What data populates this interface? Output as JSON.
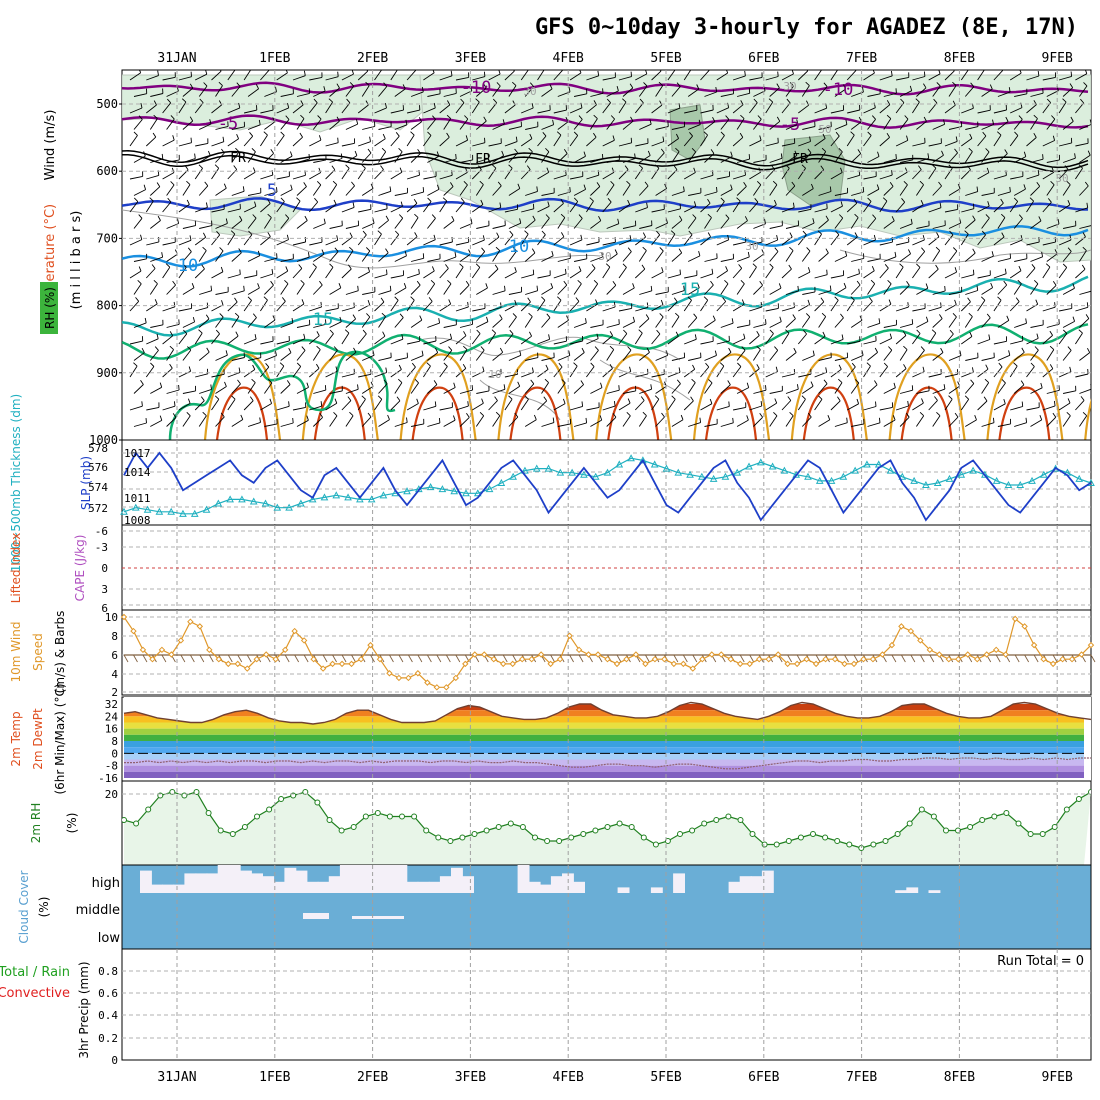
{
  "title": "GFS 0~10day 3-hourly for AGADEZ (8E, 17N)",
  "x_axis": {
    "date_labels": [
      "31JAN",
      "1FEB",
      "2FEB",
      "3FEB",
      "4FEB",
      "5FEB",
      "6FEB",
      "7FEB",
      "8FEB",
      "9FEB"
    ],
    "days_shown": 10
  },
  "colors": {
    "temperature_contour": "#800080",
    "freezing": "#000000",
    "contour_blue": "#1e3fc8",
    "contour_lightblue": "#1a8fe0",
    "contour_cyan": "#1ab0b0",
    "contour_green": "#10b070",
    "contour_orange": "#e0a020",
    "contour_red": "#d04010",
    "rh_fill": "#dbeedd",
    "rh_fill_dark": "#a8c8aa",
    "slp": "#1e3fc8",
    "thickness": "#20b0c0",
    "wind10m": "#e0982a",
    "barb": "#806040",
    "rh2m": "#208020",
    "rh2m_fill": "#e8f5e8",
    "cloud": "#6aaed6",
    "cloud_clear": "#f4f0f8"
  },
  "panels": {
    "upper": {
      "y_label_wind": "Wind (m/s)",
      "y_label_temp": "Temperature (°C)",
      "y_label_mb": "(m i l l i b a r s)",
      "rh_tag": "RH (%)",
      "ticks": [
        "500",
        "600",
        "700",
        "800",
        "900",
        "1000"
      ],
      "contour_labels": [
        "-10",
        "-10",
        "-5",
        "-5",
        "FR",
        "FR",
        "FR",
        "5",
        "10",
        "10",
        "15",
        "15",
        "30",
        "30",
        "30",
        "50",
        "30",
        "30",
        "10"
      ]
    },
    "slp": {
      "label_thick": "1000~500mb Thickness (dm)",
      "label_slp": "SLP (mb)",
      "ticks_left": [
        "578",
        "576",
        "574",
        "572"
      ],
      "ticks_right": [
        "1017",
        "1014",
        "1011",
        "1008"
      ]
    },
    "cape": {
      "label_li": "Lifted Index",
      "label_cape": "CAPE (J/kg)",
      "ticks": [
        "-6",
        "-3",
        "0",
        "3",
        "6"
      ]
    },
    "wind10": {
      "label_a": "10m Wind",
      "label_b": "Speed",
      "label_c": "(m/s) & Barbs",
      "ticks": [
        "10",
        "8",
        "6",
        "4",
        "2"
      ]
    },
    "temp2m": {
      "label_a": "2m Temp",
      "label_b": "2m DewPt",
      "label_c": "(6hr Min/Max) (°C)",
      "ticks": [
        "32",
        "24",
        "16",
        "8",
        "0",
        "-8",
        "-16"
      ]
    },
    "rh2m": {
      "label_a": "2m RH",
      "label_b": "(%)",
      "ticks": [
        "20"
      ]
    },
    "cloud": {
      "label_a": "Cloud Cover",
      "label_b": "(%)",
      "levels": [
        "high",
        "middle",
        "low"
      ]
    },
    "precip": {
      "label_a": "Total / Rain",
      "label_b": "Convective",
      "label_c": "3hr Precip (mm)",
      "ticks": [
        "0.8",
        "0.6",
        "0.4",
        "0.2",
        "0"
      ],
      "run_total": "Run Total = 0"
    }
  },
  "chart_data": [
    {
      "type": "line",
      "name": "slp_thickness",
      "series": [
        {
          "name": "SLP (mb)",
          "values": [
            1014,
            1017,
            1015,
            1017,
            1015,
            1012,
            1013,
            1014,
            1015,
            1016,
            1014,
            1013,
            1015,
            1016,
            1014,
            1012,
            1011,
            1014,
            1015,
            1013,
            1011,
            1013,
            1015,
            1012,
            1010,
            1012,
            1014,
            1016,
            1013,
            1010,
            1011,
            1013,
            1015,
            1016,
            1014,
            1012,
            1009,
            1011,
            1013,
            1015,
            1013,
            1011,
            1012,
            1014,
            1016,
            1013,
            1010,
            1009,
            1011,
            1013,
            1015,
            1016,
            1013,
            1011,
            1008,
            1010,
            1012,
            1014,
            1016,
            1015,
            1012,
            1009,
            1011,
            1013,
            1015,
            1016,
            1013,
            1011,
            1008,
            1010,
            1012,
            1015,
            1016,
            1014,
            1012,
            1010,
            1009,
            1011,
            1013,
            1015,
            1014,
            1012,
            1013
          ]
        },
        {
          "name": "1000~500mb Thickness (dm)",
          "values": [
            571.8,
            572.2,
            572,
            571.8,
            571.8,
            571.6,
            571.6,
            572,
            572.6,
            573,
            573,
            572.8,
            572.6,
            572.2,
            572.2,
            572.6,
            573,
            573.2,
            573.4,
            573.2,
            573,
            573,
            573.4,
            573.6,
            573.8,
            574,
            574.2,
            574,
            573.8,
            573.6,
            573.6,
            574,
            574.6,
            575.2,
            575.8,
            576,
            576,
            575.6,
            575.6,
            575.4,
            575.2,
            575.6,
            576.4,
            577,
            576.8,
            576.4,
            576,
            575.6,
            575.4,
            575.2,
            575,
            575.2,
            575.6,
            576.2,
            576.6,
            576.2,
            575.8,
            575.4,
            575.2,
            574.8,
            574.8,
            575.2,
            575.8,
            576.4,
            576.4,
            575.8,
            575.2,
            574.8,
            574.4,
            574.6,
            575,
            575.4,
            575.8,
            575.4,
            574.8,
            574.4,
            574.4,
            574.8,
            575.4,
            576,
            575.6,
            575,
            574.6
          ]
        }
      ]
    },
    {
      "type": "line",
      "name": "wind10m_speed",
      "ylabel": "(m/s)",
      "ylim": [
        2,
        10
      ],
      "values": [
        10,
        8.5,
        6.5,
        5.5,
        6.5,
        6,
        7.5,
        9.5,
        9,
        6.5,
        5.5,
        5,
        5,
        4.5,
        5.5,
        6,
        5.5,
        6.5,
        8.5,
        7.5,
        5.5,
        4.5,
        5,
        5,
        5,
        5.5,
        7,
        5.5,
        4,
        3.5,
        3.5,
        4,
        3,
        2.5,
        2.5,
        3.5,
        5,
        6,
        6,
        5.5,
        5,
        5,
        5.5,
        5.5,
        6,
        5,
        5.5,
        8,
        6.5,
        6,
        6,
        5.5,
        5,
        5.5,
        6,
        5,
        5.5,
        5.5,
        5,
        5,
        4.5,
        5.5,
        6,
        6,
        5.5,
        5,
        5,
        5.5,
        5.5,
        6,
        5,
        5,
        5.5,
        5,
        5.5,
        5.5,
        5,
        5,
        5.5,
        5.5,
        6,
        7,
        9,
        8.5,
        7.5,
        6.5,
        6,
        5.5,
        5.5,
        6,
        5.5,
        6,
        6.5,
        6,
        9.8,
        9,
        7,
        5.5,
        5,
        5.5,
        5.5,
        6,
        7
      ]
    },
    {
      "type": "area",
      "name": "temp2m",
      "ylabel": "(°C)",
      "ylim": [
        -16,
        32
      ],
      "series": [
        {
          "name": "2m Temp",
          "values": [
            26,
            27,
            25,
            23,
            22,
            21,
            20,
            20,
            22,
            25,
            27,
            28,
            26,
            23,
            21,
            20,
            20,
            19,
            20,
            22,
            26,
            28,
            28,
            25,
            22,
            20,
            20,
            20,
            21,
            25,
            29,
            31,
            30,
            27,
            24,
            23,
            22,
            22,
            23,
            26,
            30,
            32,
            32,
            28,
            25,
            24,
            23,
            23,
            24,
            27,
            31,
            33,
            32,
            29,
            26,
            24,
            23,
            22,
            24,
            27,
            31,
            33,
            32,
            29,
            26,
            24,
            23,
            23,
            24,
            27,
            31,
            32,
            32,
            29,
            26,
            24,
            23,
            23,
            24,
            28,
            32,
            33,
            32,
            29,
            26,
            24,
            23,
            22
          ]
        },
        {
          "name": "2m DewPt",
          "values": [
            -6,
            -6,
            -5,
            -6,
            -5,
            -6,
            -5,
            -6,
            -5,
            -6,
            -5,
            -5,
            -6,
            -5,
            -5,
            -6,
            -5,
            -6,
            -5,
            -5,
            -6,
            -5,
            -6,
            -5,
            -5,
            -5,
            -6,
            -5,
            -5,
            -6,
            -5,
            -6,
            -6,
            -5,
            -6,
            -6,
            -7,
            -8,
            -9,
            -9,
            -8,
            -7,
            -7,
            -8,
            -8,
            -9,
            -8,
            -7,
            -7,
            -8,
            -9,
            -10,
            -10,
            -9,
            -8,
            -7,
            -6,
            -5,
            -5,
            -6,
            -5,
            -5,
            -4,
            -4,
            -5,
            -5,
            -4,
            -4,
            -3,
            -3,
            -4,
            -3,
            -3,
            -4,
            -3,
            -4,
            -4,
            -3,
            -4,
            -3,
            -4,
            -3,
            -3
          ]
        }
      ]
    },
    {
      "type": "line",
      "name": "rh2m",
      "ylabel": "(%)",
      "values": [
        12,
        11,
        15,
        19,
        20,
        19,
        20,
        14,
        9,
        8,
        10,
        13,
        15,
        18,
        19,
        20,
        17,
        12,
        9,
        10,
        13,
        14,
        13,
        13,
        13,
        9,
        7,
        6,
        7,
        8,
        9,
        10,
        11,
        10,
        7,
        6,
        6,
        7,
        8,
        9,
        10,
        11,
        10,
        7,
        5,
        6,
        8,
        9,
        11,
        12,
        13,
        12,
        8,
        5,
        5,
        6,
        7,
        8,
        7,
        6,
        5,
        4,
        5,
        6,
        8,
        11,
        15,
        13,
        9,
        9,
        10,
        12,
        13,
        14,
        11,
        8,
        8,
        10,
        15,
        18,
        20
      ]
    },
    {
      "type": "heatmap",
      "name": "cloud_cover",
      "levels": [
        "high",
        "middle",
        "low"
      ],
      "high_pct": [
        80,
        30,
        30,
        30,
        70,
        70,
        70,
        100,
        100,
        80,
        70,
        60,
        40,
        90,
        80,
        40,
        40,
        60,
        100,
        100,
        100,
        100,
        100,
        100,
        40,
        40,
        40,
        60,
        90,
        60,
        0,
        0,
        0,
        0,
        100,
        40,
        30,
        60,
        70,
        40,
        0,
        0,
        0,
        20,
        0,
        0,
        20,
        0,
        70,
        0,
        0,
        0,
        0,
        40,
        60,
        60,
        80,
        0,
        0,
        0,
        0,
        0,
        0,
        0,
        0,
        0,
        0,
        0,
        10,
        20,
        0,
        10,
        0,
        0,
        0,
        0,
        0,
        0,
        0,
        0,
        0,
        0,
        0,
        0,
        0
      ],
      "middle_pct": [
        0,
        0,
        0,
        0,
        0,
        0,
        0,
        0,
        0,
        0,
        0,
        0,
        0,
        0,
        0,
        0,
        0,
        0,
        0,
        0,
        0,
        0,
        0,
        0,
        0,
        0,
        0,
        0,
        0,
        0,
        0,
        0,
        0,
        0,
        0,
        0,
        0,
        0,
        0,
        0,
        0,
        0,
        0,
        0,
        0,
        0,
        0,
        0,
        0,
        0,
        0,
        0,
        0,
        0,
        0,
        0,
        0,
        0,
        0,
        0,
        0,
        0,
        0,
        0,
        0,
        0,
        0,
        0,
        0,
        0,
        0,
        0,
        0,
        0,
        0,
        0,
        0,
        0,
        0,
        0,
        0,
        0,
        0,
        0,
        0
      ],
      "low_pct": []
    },
    {
      "type": "bar",
      "name": "precip_3hr",
      "ylabel": "3hr Precip (mm)",
      "ylim": [
        0,
        1
      ],
      "values": []
    }
  ]
}
